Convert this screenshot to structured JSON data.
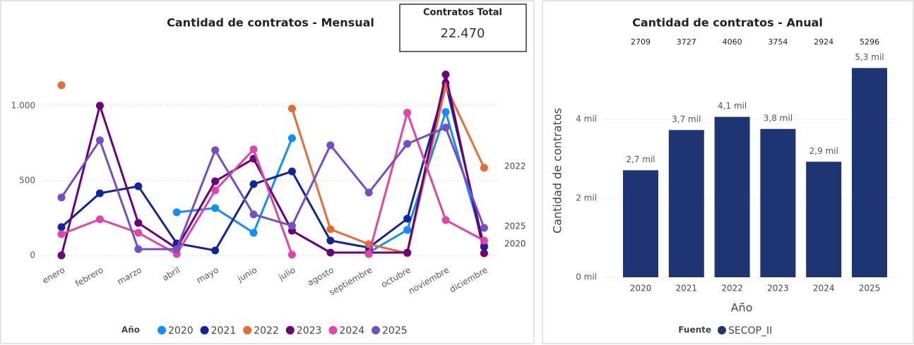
{
  "card": {
    "title": "Contratos Total",
    "value": "22.470"
  },
  "chart_data": [
    {
      "type": "line",
      "title": "Cantidad de contratos - Mensual",
      "legend_title": "Año",
      "categories": [
        "enero",
        "febrero",
        "marzo",
        "abril",
        "mayo",
        "junio",
        "julio",
        "agosto",
        "septiembre",
        "octubre",
        "noviembre",
        "diciembre"
      ],
      "series": [
        {
          "name": "2020",
          "color": "#118dff",
          "end_label": true,
          "values": [
            null,
            null,
            null,
            288,
            316,
            151,
            783,
            null,
            20,
            170,
            958,
            66
          ]
        },
        {
          "name": "2021",
          "color": "#12239e",
          "end_label": false,
          "values": [
            189,
            415,
            462,
            80,
            33,
            476,
            561,
            99,
            52,
            245,
            1151,
            57
          ]
        },
        {
          "name": "2022",
          "color": "#e66c37",
          "end_label": true,
          "values": [
            1137,
            null,
            null,
            null,
            null,
            null,
            981,
            175,
            75,
            14,
            1132,
            585
          ]
        },
        {
          "name": "2023",
          "color": "#6b007b",
          "end_label": false,
          "values": [
            0,
            1000,
            217,
            47,
            495,
            646,
            165,
            19,
            19,
            19,
            1208,
            14
          ]
        },
        {
          "name": "2024",
          "color": "#e044a7",
          "end_label": false,
          "values": [
            142,
            241,
            151,
            9,
            434,
            708,
            5,
            null,
            9,
            953,
            236,
            99
          ]
        },
        {
          "name": "2025",
          "color": "#744ec2",
          "end_label": true,
          "values": [
            387,
            769,
            42,
            42,
            703,
            274,
            198,
            736,
            420,
            745,
            854,
            184
          ]
        }
      ],
      "ylim": [
        0,
        1230
      ],
      "yticks": [
        0,
        500,
        {
          "value": 1000,
          "label": "1.000"
        }
      ],
      "grid": true
    },
    {
      "type": "bar",
      "title": "Cantidad de contratos - Anual",
      "y_label": "Cantidad de contratos",
      "x_label": "Año",
      "legend_title": "Fuente",
      "series_name": "SECOP_II",
      "color": "#1f3473",
      "categories": [
        "2020",
        "2021",
        "2022",
        "2023",
        "2024",
        "2025"
      ],
      "values": [
        2709,
        3727,
        4060,
        3754,
        2924,
        5296
      ],
      "value_labels": [
        "2,7 mil",
        "3,7 mil",
        "4,1 mil",
        "3,8 mil",
        "2,9 mil",
        "5,3 mil"
      ],
      "ylim": [
        0,
        5500
      ],
      "yticks": [
        {
          "value": 0,
          "label": "0 mil"
        },
        {
          "value": 2000,
          "label": "2 mil"
        },
        {
          "value": 4000,
          "label": "4 mil"
        }
      ],
      "grid": true
    }
  ]
}
